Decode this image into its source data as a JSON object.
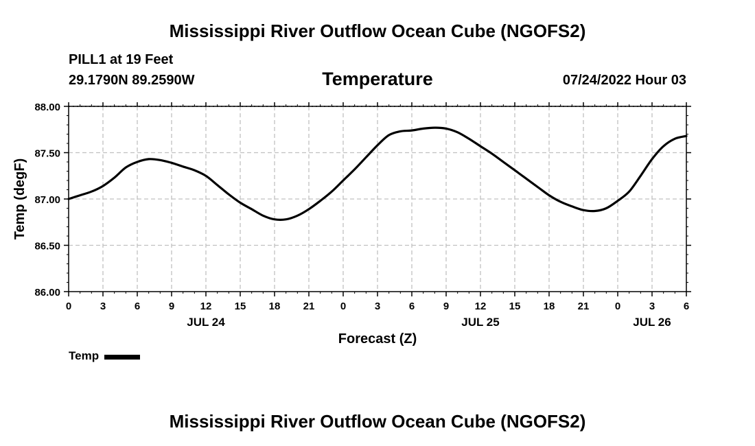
{
  "header": {
    "title": "Mississippi River Outflow Ocean Cube (NGOFS2)",
    "station": "PILL1 at 19 Feet",
    "coords": "29.1790N  89.2590W",
    "run_time": "07/24/2022 Hour 03"
  },
  "footer": {
    "title": "Mississippi River Outflow Ocean Cube (NGOFS2)"
  },
  "colors": {
    "line": "#000000",
    "grid": "#c0c0c0",
    "background": "#ffffff"
  },
  "chart_data": {
    "type": "line",
    "title": "Temperature",
    "xlabel": "Forecast (Z)",
    "ylabel": "Temp (degF)",
    "xlim": [
      0,
      54
    ],
    "ylim": [
      86.0,
      88.0
    ],
    "grid": true,
    "yticks": [
      86.0,
      86.5,
      87.0,
      87.5,
      88.0
    ],
    "ytick_labels": [
      "86.00",
      "86.50",
      "87.00",
      "87.50",
      "88.00"
    ],
    "xticks": [
      0,
      3,
      6,
      9,
      12,
      15,
      18,
      21,
      24,
      27,
      30,
      33,
      36,
      39,
      42,
      45,
      48,
      51,
      54
    ],
    "xtick_labels": [
      "0",
      "3",
      "6",
      "9",
      "12",
      "15",
      "18",
      "21",
      "0",
      "3",
      "6",
      "9",
      "12",
      "15",
      "18",
      "21",
      "0",
      "3",
      "6"
    ],
    "date_labels": [
      {
        "x": 12,
        "label": "JUL 24"
      },
      {
        "x": 36,
        "label": "JUL 25"
      },
      {
        "x": 51,
        "label": "JUL 26"
      }
    ],
    "legend": {
      "position": "bottom-left",
      "entries": [
        "Temp"
      ]
    },
    "series": [
      {
        "name": "Temp",
        "x": [
          0,
          1,
          2,
          3,
          4,
          5,
          6,
          7,
          8,
          9,
          10,
          11,
          12,
          13,
          14,
          15,
          16,
          17,
          18,
          19,
          20,
          21,
          22,
          23,
          24,
          25,
          26,
          27,
          28,
          29,
          30,
          31,
          32,
          33,
          34,
          35,
          36,
          37,
          38,
          39,
          40,
          41,
          42,
          43,
          44,
          45,
          46,
          47,
          48,
          49,
          50,
          51,
          52,
          53,
          54
        ],
        "values": [
          87.0,
          87.04,
          87.08,
          87.14,
          87.23,
          87.34,
          87.4,
          87.43,
          87.42,
          87.39,
          87.35,
          87.31,
          87.25,
          87.15,
          87.05,
          86.96,
          86.89,
          86.82,
          86.78,
          86.78,
          86.82,
          86.89,
          86.98,
          87.08,
          87.2,
          87.32,
          87.45,
          87.58,
          87.69,
          87.73,
          87.74,
          87.76,
          87.77,
          87.76,
          87.72,
          87.65,
          87.57,
          87.49,
          87.4,
          87.31,
          87.22,
          87.13,
          87.04,
          86.97,
          86.92,
          86.88,
          86.87,
          86.9,
          86.98,
          87.08,
          87.25,
          87.43,
          87.57,
          87.65,
          87.68
        ]
      }
    ]
  }
}
